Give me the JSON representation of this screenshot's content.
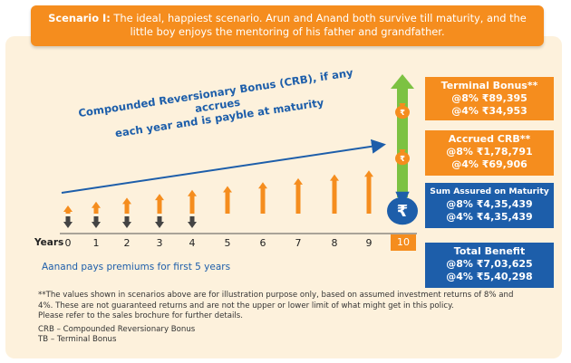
{
  "banner": {
    "lead": "Scenario I:",
    "text": " The ideal, happiest scenario. Arun and Anand both survive till maturity, and the little boy enjoys the mentoring of his father and grandfather."
  },
  "trend": {
    "line1": "Compounded Reversionary Bonus (CRB), if any accrues",
    "line2": "each year and is payble at maturity"
  },
  "boxes": {
    "terminal": {
      "title": "Terminal Bonus**",
      "l1": "@8% ₹89,395",
      "l2": "@4% ₹34,953"
    },
    "accrued": {
      "title": "Accrued CRB**",
      "l1": "@8% ₹1,78,791",
      "l2": "@4% ₹69,906"
    },
    "sum_assured": {
      "title": "Sum Assured on Maturity",
      "l1": "@8% ₹4,35,439",
      "l2": "@4% ₹4,35,439"
    },
    "total": {
      "title": "Total Benefit",
      "l1": "@8% ₹7,03,625",
      "l2": "@4% ₹5,40,298"
    }
  },
  "axis": {
    "label": "Years",
    "years": [
      "0",
      "1",
      "2",
      "3",
      "4",
      "5",
      "6",
      "7",
      "8",
      "9",
      "10"
    ]
  },
  "premium_note": "Aanand pays premiums for first 5 years",
  "rupee_symbol": "₹",
  "footnote": {
    "l1": "**The values shown in scenarios above are for illustration purpose only, based on assumed investment returns of 8% and",
    "l2": "4%. These are not guaranteed returns and are not the upper or lower limit of what might get in this policy.",
    "l3": "Please refer to the sales brochure for further details.",
    "l4": "CRB – Compounded Reversionary Bonus",
    "l5": "TB – Terminal Bonus"
  },
  "colors": {
    "orange": "#f58d1e",
    "blue": "#1d5eaa",
    "green": "#7cc242",
    "panel": "#fdf1dc"
  }
}
